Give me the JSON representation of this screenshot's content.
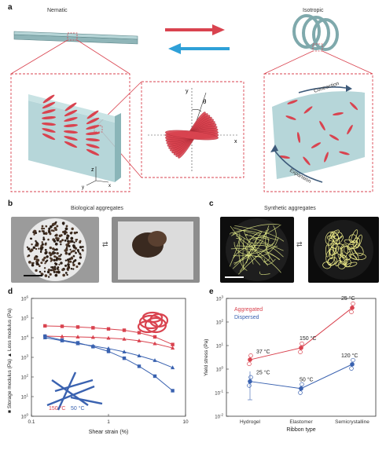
{
  "panel_a": {
    "letter": "a",
    "left_label": "Nematic",
    "right_label": "Isotropic",
    "expansion_label": "Expansion",
    "contraction_label": "Contraction",
    "axis_x": "x",
    "axis_y": "y",
    "axis_z": "z",
    "theta": "θ"
  },
  "panel_b": {
    "letter": "b",
    "title": "Biological aggregates"
  },
  "panel_c": {
    "letter": "c",
    "title": "Synthetic aggregates"
  },
  "colors": {
    "red": "#d9434f",
    "blue": "#3a62b0",
    "teal": "#9fc6c8"
  },
  "chart_data": [
    {
      "panel": "d",
      "type": "line",
      "xlabel": "Shear strain (%)",
      "ylabel_storage": "Storage modulus (Pa)",
      "ylabel_loss": "Loss modulus (Pa)",
      "xscale": "log",
      "yscale": "log",
      "xlim": [
        0.1,
        10
      ],
      "ylim": [
        1,
        1000000
      ],
      "x_ticks": [
        "0.1",
        "1",
        "10"
      ],
      "y_ticks": [
        "10^0",
        "10^1",
        "10^2",
        "10^3",
        "10^4",
        "10^5",
        "10^6"
      ],
      "legend": [
        "150 °C",
        "50 °C"
      ],
      "series": [
        {
          "name": "150 °C",
          "color": "#d9434f",
          "marker": "square",
          "x": [
            0.15,
            0.25,
            0.4,
            0.63,
            1.0,
            1.6,
            2.5,
            4.0,
            6.8
          ],
          "y": [
            40000,
            38000,
            35000,
            32000,
            28000,
            24000,
            18000,
            11000,
            4500
          ]
        },
        {
          "name": "150 °C",
          "color": "#d9434f",
          "marker": "triangle",
          "x": [
            0.15,
            0.25,
            0.4,
            0.63,
            1.0,
            1.6,
            2.5,
            4.0,
            6.8
          ],
          "y": [
            12000,
            11500,
            11000,
            10500,
            9500,
            8500,
            7000,
            5000,
            3000
          ]
        },
        {
          "name": "50 °C",
          "color": "#3a62b0",
          "marker": "triangle",
          "x": [
            0.15,
            0.25,
            0.4,
            0.63,
            1.0,
            1.6,
            2.5,
            4.0,
            6.8
          ],
          "y": [
            10000,
            7000,
            5000,
            3800,
            2800,
            1900,
            1200,
            700,
            300
          ]
        },
        {
          "name": "50 °C",
          "color": "#3a62b0",
          "marker": "square",
          "x": [
            0.15,
            0.25,
            0.4,
            0.63,
            1.0,
            1.6,
            2.5,
            4.0,
            6.8
          ],
          "y": [
            12000,
            7500,
            5500,
            3500,
            2000,
            900,
            350,
            110,
            20
          ]
        }
      ]
    },
    {
      "panel": "e",
      "type": "scatter",
      "xlabel": "Ribbon type",
      "ylabel": "Yield stress (Pa)",
      "yscale": "log",
      "ylim": [
        0.01,
        1000
      ],
      "categories": [
        "Hydrogel",
        "Elastomer",
        "Semicrystalline"
      ],
      "y_ticks": [
        "10^-2",
        "10^-1",
        "10^0",
        "10^1",
        "10^2",
        "10^3"
      ],
      "legend": [
        "Aggregated",
        "Dispersed"
      ],
      "series": [
        {
          "name": "Aggregated",
          "color": "#d9434f",
          "values": [
            2.5,
            8,
            400
          ],
          "labels": [
            "37 °C",
            "150 °C",
            "25 °C"
          ]
        },
        {
          "name": "Dispersed",
          "color": "#3a62b0",
          "values": [
            0.3,
            0.15,
            1.6
          ],
          "labels": [
            "25 °C",
            "50 °C",
            "120 °C"
          ]
        }
      ]
    }
  ]
}
